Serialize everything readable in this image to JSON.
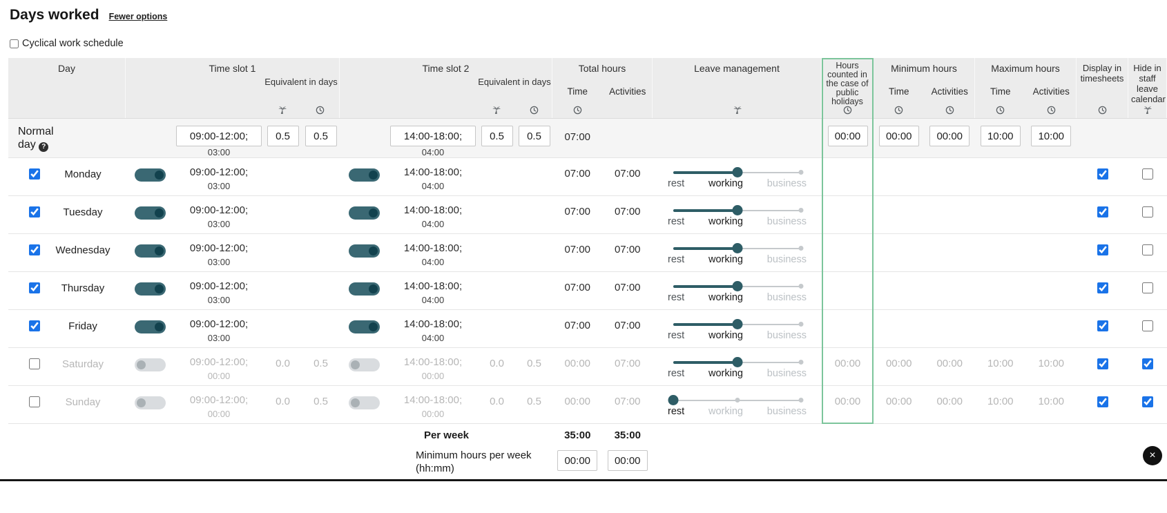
{
  "page": {
    "title": "Days worked",
    "fewer_options_link": "Fewer options",
    "cyclical_checkbox_label": "Cyclical work schedule"
  },
  "header": {
    "day": "Day",
    "time_slot_1": "Time slot 1",
    "time_slot_2": "Time slot 2",
    "equivalent_in_days": "Equivalent in days",
    "total_hours": "Total hours",
    "time": "Time",
    "activities": "Activities",
    "leave_management": "Leave management",
    "public_holidays": "Hours counted in the case of public holidays",
    "minimum_hours": "Minimum hours",
    "maximum_hours": "Maximum hours",
    "display_in_timesheets": "Display in timesheets",
    "hide_in_staff_leave_calendar": "Hide in staff leave calendar"
  },
  "normal_day": {
    "label": "Normal day",
    "slot1": {
      "time": "09:00-12:00;",
      "hours": "03:00",
      "equivalent_days": "0.5",
      "equivalent_time": "0.5"
    },
    "slot2": {
      "time": "14:00-18:00;",
      "hours": "04:00",
      "equivalent_days": "0.5",
      "equivalent_time": "0.5"
    },
    "total_time": "07:00",
    "public_holidays": "00:00",
    "min_time": "00:00",
    "min_activities": "00:00",
    "max_time": "10:00",
    "max_activities": "10:00"
  },
  "slider_labels": {
    "rest": "rest",
    "working": "working",
    "business": "business"
  },
  "days": [
    {
      "name": "Monday",
      "enabled": true,
      "slot1_time": "09:00-12:00;",
      "slot1_hours": "03:00",
      "slot2_time": "14:00-18:00;",
      "slot2_hours": "04:00",
      "total_time": "07:00",
      "total_activities": "07:00",
      "slider": "working",
      "display_in_timesheets": true,
      "hide_in_calendar": false
    },
    {
      "name": "Tuesday",
      "enabled": true,
      "slot1_time": "09:00-12:00;",
      "slot1_hours": "03:00",
      "slot2_time": "14:00-18:00;",
      "slot2_hours": "04:00",
      "total_time": "07:00",
      "total_activities": "07:00",
      "slider": "working",
      "display_in_timesheets": true,
      "hide_in_calendar": false
    },
    {
      "name": "Wednesday",
      "enabled": true,
      "slot1_time": "09:00-12:00;",
      "slot1_hours": "03:00",
      "slot2_time": "14:00-18:00;",
      "slot2_hours": "04:00",
      "total_time": "07:00",
      "total_activities": "07:00",
      "slider": "working",
      "display_in_timesheets": true,
      "hide_in_calendar": false
    },
    {
      "name": "Thursday",
      "enabled": true,
      "slot1_time": "09:00-12:00;",
      "slot1_hours": "03:00",
      "slot2_time": "14:00-18:00;",
      "slot2_hours": "04:00",
      "total_time": "07:00",
      "total_activities": "07:00",
      "slider": "working",
      "display_in_timesheets": true,
      "hide_in_calendar": false
    },
    {
      "name": "Friday",
      "enabled": true,
      "slot1_time": "09:00-12:00;",
      "slot1_hours": "03:00",
      "slot2_time": "14:00-18:00;",
      "slot2_hours": "04:00",
      "total_time": "07:00",
      "total_activities": "07:00",
      "slider": "working",
      "display_in_timesheets": true,
      "hide_in_calendar": false
    },
    {
      "name": "Saturday",
      "enabled": false,
      "slot1_time": "09:00-12:00;",
      "slot1_hours": "00:00",
      "slot1_eq_days": "0.0",
      "slot1_eq_time": "0.5",
      "slot2_time": "14:00-18:00;",
      "slot2_hours": "00:00",
      "slot2_eq_days": "0.0",
      "slot2_eq_time": "0.5",
      "total_time": "00:00",
      "total_activities": "07:00",
      "slider": "working",
      "public_holidays": "00:00",
      "min_time": "00:00",
      "min_activities": "00:00",
      "max_time": "10:00",
      "max_activities": "10:00",
      "display_in_timesheets": true,
      "hide_in_calendar": true
    },
    {
      "name": "Sunday",
      "enabled": false,
      "slot1_time": "09:00-12:00;",
      "slot1_hours": "00:00",
      "slot1_eq_days": "0.0",
      "slot1_eq_time": "0.5",
      "slot2_time": "14:00-18:00;",
      "slot2_hours": "00:00",
      "slot2_eq_days": "0.0",
      "slot2_eq_time": "0.5",
      "total_time": "00:00",
      "total_activities": "07:00",
      "slider": "rest",
      "public_holidays": "00:00",
      "min_time": "00:00",
      "min_activities": "00:00",
      "max_time": "10:00",
      "max_activities": "10:00",
      "display_in_timesheets": true,
      "hide_in_calendar": true
    }
  ],
  "footer": {
    "per_week_label": "Per week",
    "per_week_time": "35:00",
    "per_week_activities": "35:00",
    "min_per_week_label": "Minimum hours per week (hh:mm)",
    "min_per_week_time": "00:00",
    "min_per_week_activities": "00:00"
  },
  "icons": {
    "help": "?",
    "close": "×"
  },
  "colors": {
    "accent_blue": "#1a73e8",
    "teal": "#2e5d66",
    "highlight_green": "#7cc59b",
    "disabled_gray": "#b6b6b6",
    "header_bg": "#ececec"
  }
}
